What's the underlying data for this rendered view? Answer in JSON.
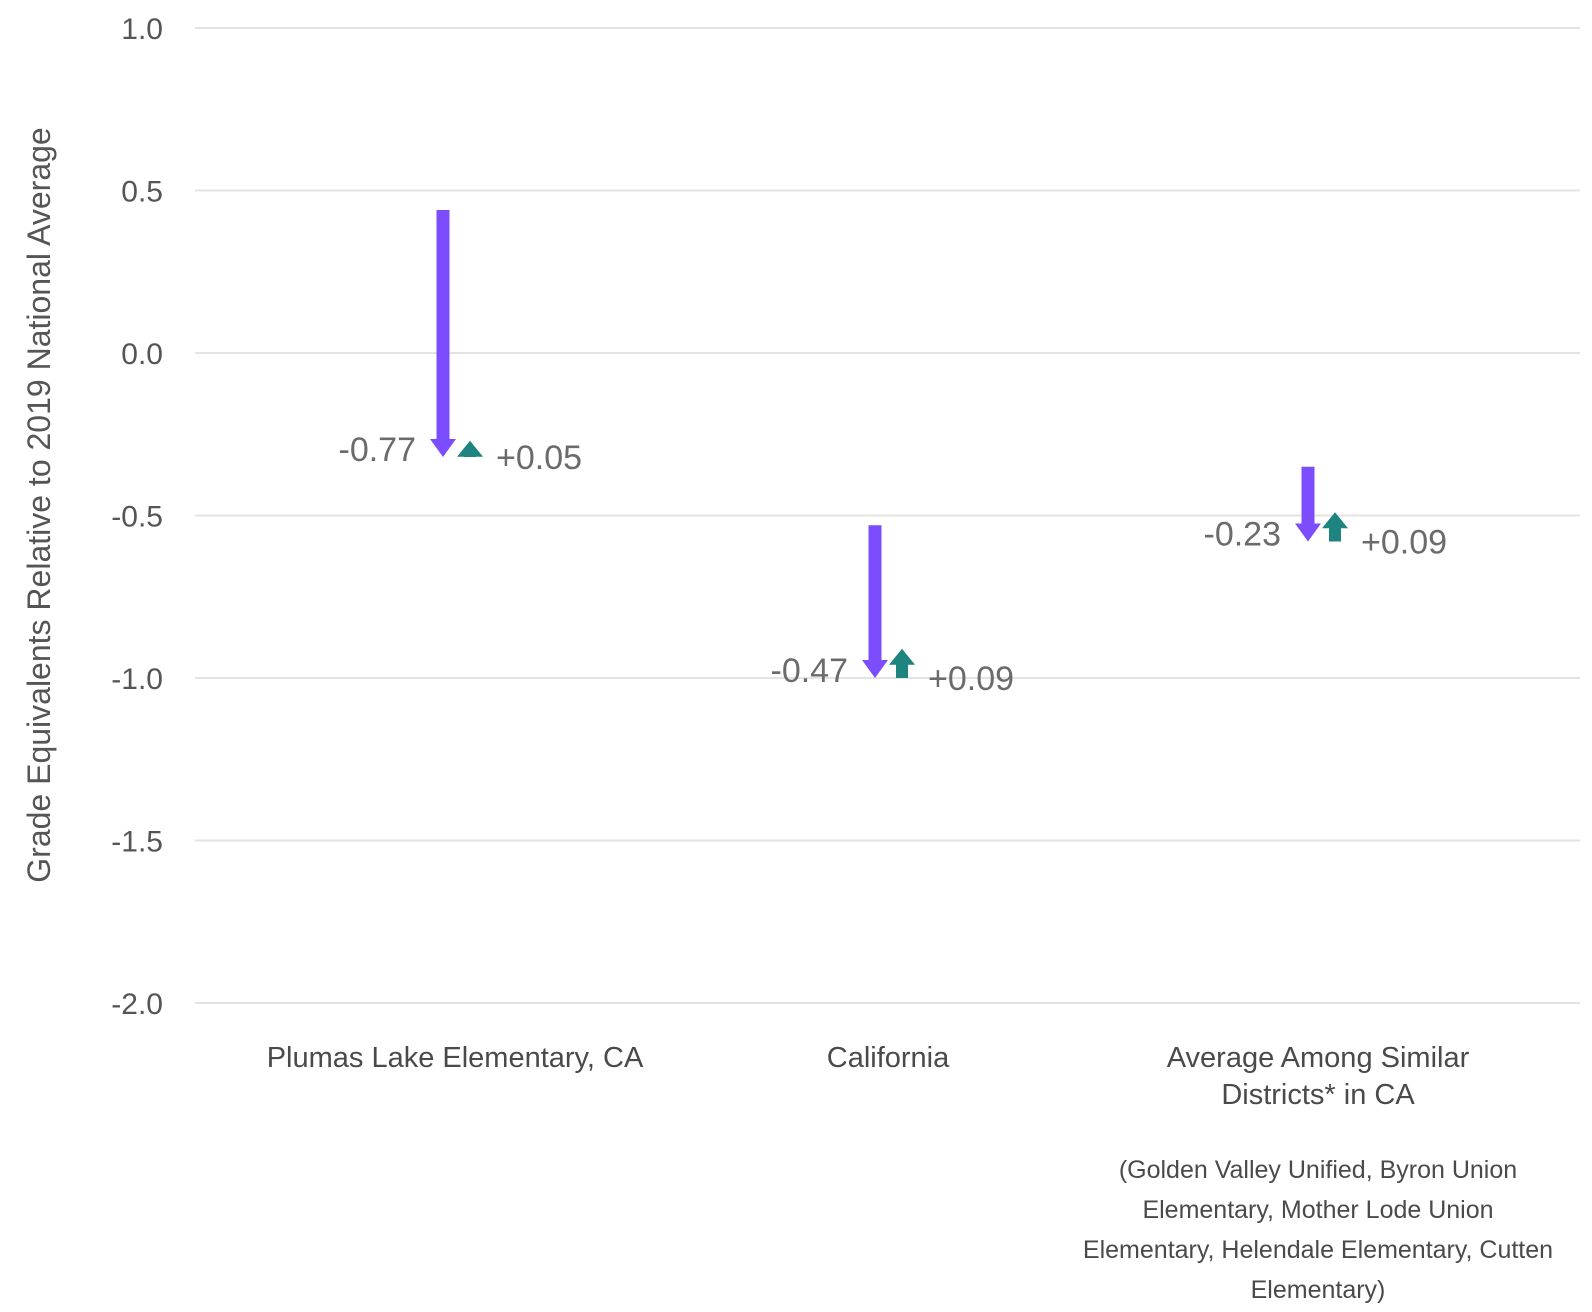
{
  "chart_data": {
    "type": "arrow",
    "ylabel": "Grade Equivalents Relative to 2019 National Average",
    "xlabel": "",
    "ylim": [
      -2.0,
      1.0
    ],
    "yticks": [
      1.0,
      0.5,
      0.0,
      -0.5,
      -1.0,
      -1.5,
      -2.0
    ],
    "ytick_labels": [
      "1.0",
      "0.5",
      "0.0",
      "-0.5",
      "-1.0",
      "-1.5",
      "-2.0"
    ],
    "grid": true,
    "colors": {
      "decline": "#7c4dff",
      "recovery": "#1e847f"
    },
    "categories": [
      {
        "label_lines": [
          "Plumas Lake Elementary, CA"
        ],
        "note_lines": [],
        "start": 0.44,
        "low": -0.32,
        "end": -0.27,
        "change_label": "-0.77",
        "recovery_label": "+0.05"
      },
      {
        "label_lines": [
          "California"
        ],
        "note_lines": [],
        "start": -0.53,
        "low": -1.0,
        "end": -0.91,
        "change_label": "-0.47",
        "recovery_label": "+0.09"
      },
      {
        "label_lines": [
          "Average Among Similar",
          "Districts* in CA"
        ],
        "note_lines": [
          "(Golden Valley Unified, Byron Union",
          "Elementary, Mother Lode Union",
          "Elementary, Helendale Elementary, Cutten",
          "Elementary)"
        ],
        "start": -0.35,
        "low": -0.58,
        "end": -0.49,
        "change_label": "-0.23",
        "recovery_label": "+0.09"
      }
    ]
  }
}
